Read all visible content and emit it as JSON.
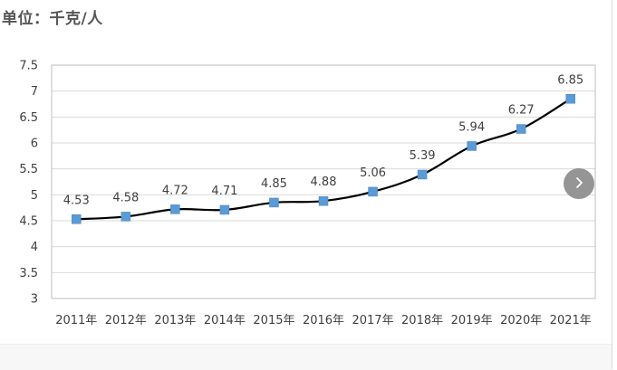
{
  "unit_label": "单位：千克/人",
  "icons": {
    "next": "chevron-right-icon"
  },
  "colors": {
    "line": "#000000",
    "marker": "#5b9bd5",
    "grid": "#d9d9d9",
    "button": "#8a8a8a"
  },
  "chart_data": {
    "type": "line",
    "categories": [
      "2011年",
      "2012年",
      "2013年",
      "2014年",
      "2015年",
      "2016年",
      "2017年",
      "2018年",
      "2019年",
      "2020年",
      "2021年"
    ],
    "series": [
      {
        "values": [
          4.53,
          4.58,
          4.72,
          4.71,
          4.85,
          4.88,
          5.06,
          5.39,
          5.94,
          6.27,
          6.85
        ]
      }
    ],
    "data_labels": [
      "4.53",
      "4.58",
      "4.72",
      "4.71",
      "4.85",
      "4.88",
      "5.06",
      "5.39",
      "5.94",
      "6.27",
      "6.85"
    ],
    "ylim": [
      3,
      7.5
    ],
    "yticks": [
      "3",
      "3.5",
      "4",
      "4.5",
      "5",
      "5.5",
      "6",
      "6.5",
      "7",
      "7.5"
    ],
    "smooth": true,
    "grid": true,
    "legend": "none"
  }
}
